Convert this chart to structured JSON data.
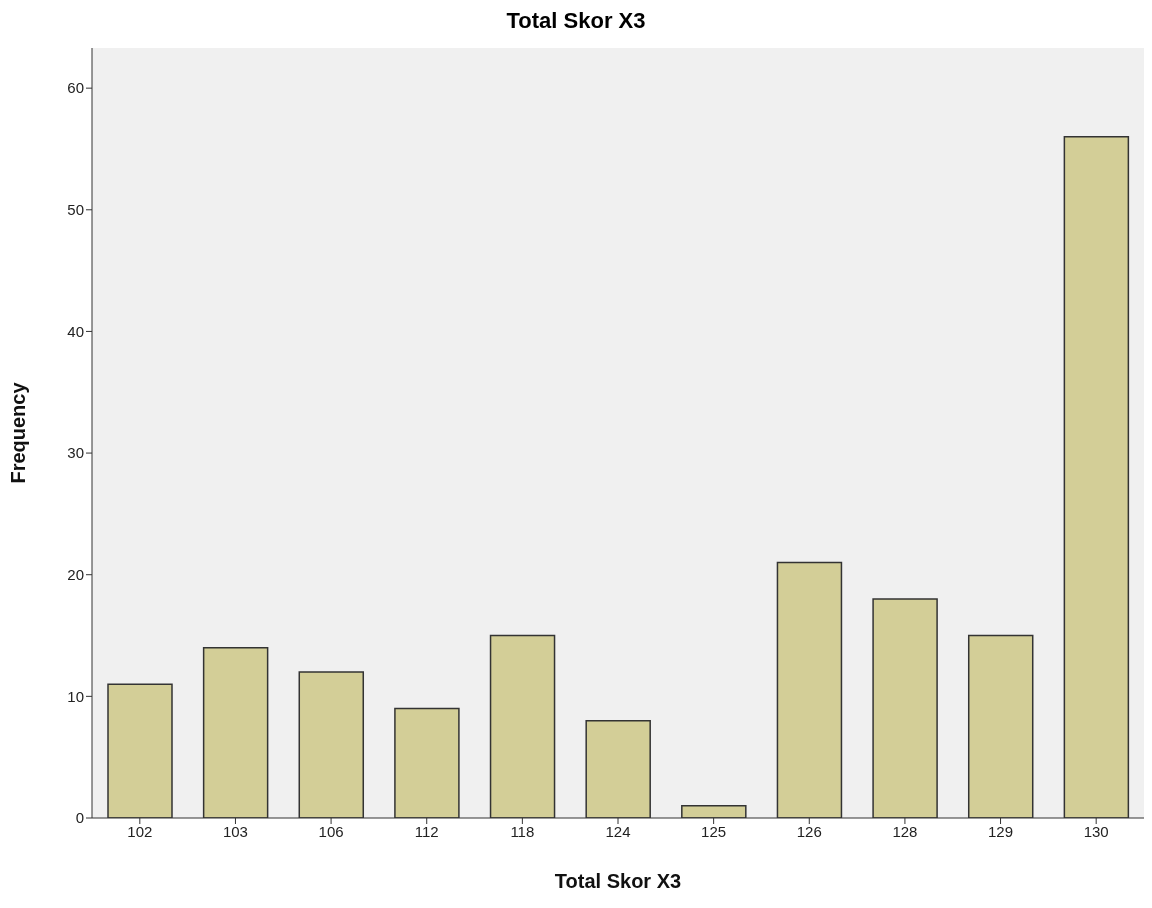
{
  "chart_data": {
    "type": "bar",
    "title": "Total Skor X3",
    "xlabel": "Total Skor X3",
    "ylabel": "Frequency",
    "categories": [
      "102",
      "103",
      "106",
      "112",
      "118",
      "124",
      "125",
      "126",
      "128",
      "129",
      "130"
    ],
    "values": [
      11,
      14,
      12,
      9,
      15,
      8,
      1,
      21,
      18,
      15,
      56
    ],
    "color": "#d3ce97",
    "ylim": [
      0,
      63.3
    ],
    "yticks": [
      0,
      10,
      20,
      30,
      40,
      50,
      60
    ],
    "grid": false,
    "legend": false
  }
}
